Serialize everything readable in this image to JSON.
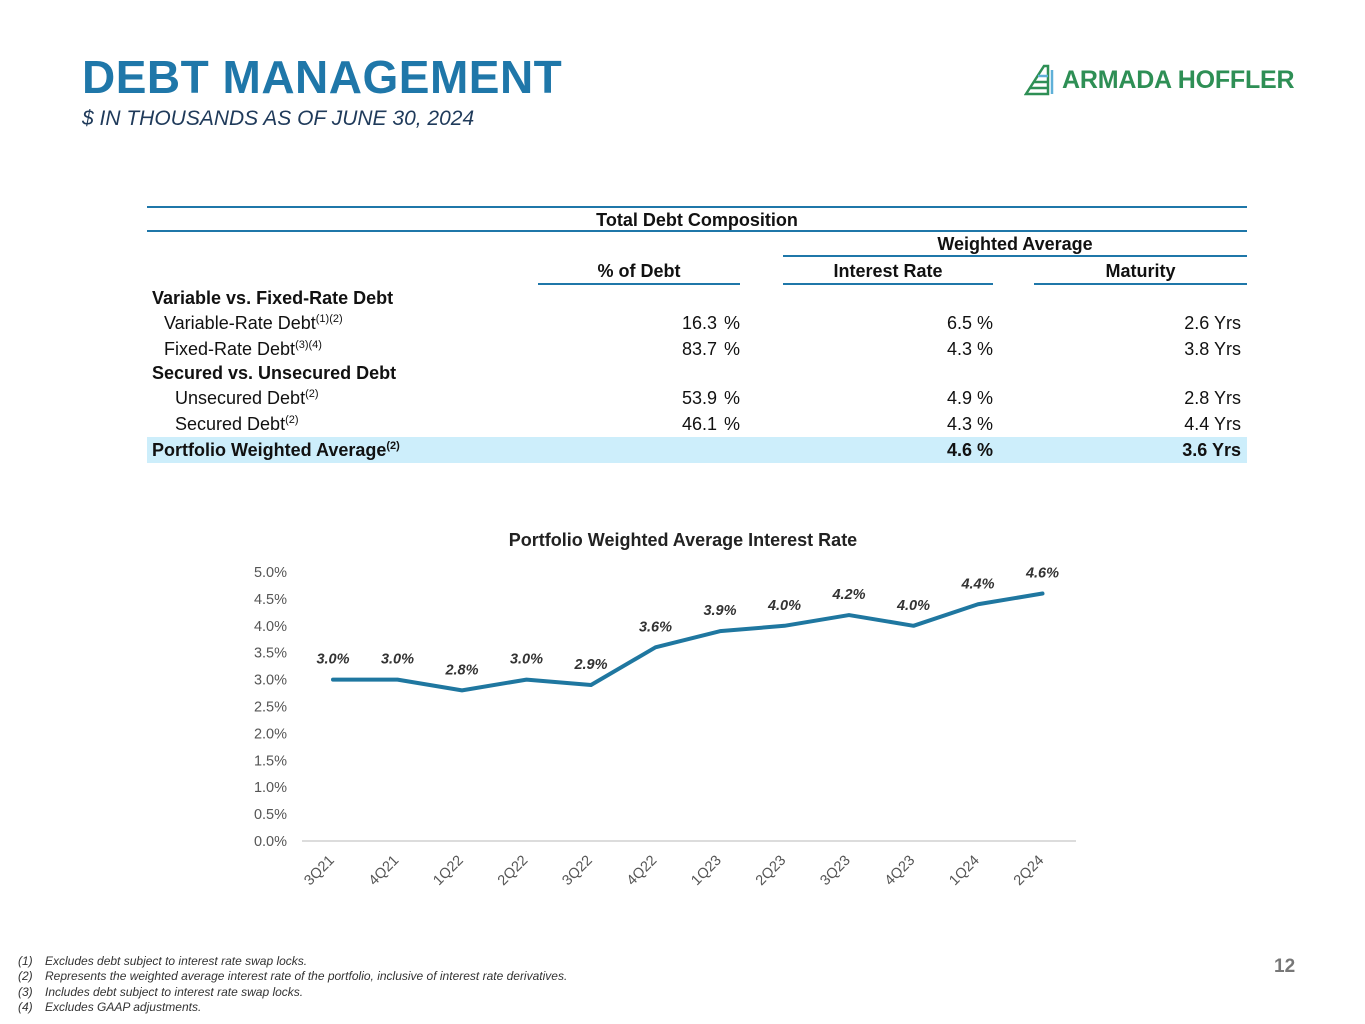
{
  "header": {
    "title": "DEBT MANAGEMENT",
    "subtitle": "$ IN THOUSANDS AS OF JUNE 30, 2024",
    "logo_text": "ARMADA HOFFLER"
  },
  "table": {
    "title": "Total Debt Composition",
    "group_header": "Weighted Average",
    "columns": [
      "% of Debt",
      "Interest Rate",
      "Maturity"
    ],
    "sections": [
      {
        "label": "Variable vs. Fixed-Rate Debt",
        "rows": [
          {
            "label": "Variable-Rate Debt",
            "sup": "(1)(2)",
            "pct": "16.3",
            "pct_unit": "%",
            "rate": "6.5",
            "rate_unit": "%",
            "maturity": "2.6 Yrs"
          },
          {
            "label": "Fixed-Rate Debt",
            "sup": "(3)(4)",
            "pct": "83.7",
            "pct_unit": "%",
            "rate": "4.3",
            "rate_unit": "%",
            "maturity": "3.8 Yrs"
          }
        ]
      },
      {
        "label": "Secured vs. Unsecured Debt",
        "rows": [
          {
            "label": "Unsecured Debt",
            "sup": "(2)",
            "pct": "53.9",
            "pct_unit": "%",
            "rate": "4.9",
            "rate_unit": "%",
            "maturity": "2.8 Yrs"
          },
          {
            "label": "Secured Debt",
            "sup": "(2)",
            "pct": "46.1",
            "pct_unit": "%",
            "rate": "4.3",
            "rate_unit": "%",
            "maturity": "4.4 Yrs"
          }
        ]
      }
    ],
    "total": {
      "label": "Portfolio Weighted Average",
      "sup": "(2)",
      "rate": "4.6",
      "rate_unit": "%",
      "maturity": "3.6 Yrs"
    }
  },
  "chart_data": {
    "type": "line",
    "title": "Portfolio Weighted Average Interest Rate",
    "categories": [
      "3Q21",
      "4Q21",
      "1Q22",
      "2Q22",
      "3Q22",
      "4Q22",
      "1Q23",
      "2Q23",
      "3Q23",
      "4Q23",
      "1Q24",
      "2Q24"
    ],
    "values": [
      3.0,
      3.0,
      2.8,
      3.0,
      2.9,
      3.6,
      3.9,
      4.0,
      4.2,
      4.0,
      4.4,
      4.6
    ],
    "data_labels": [
      "3.0%",
      "3.0%",
      "2.8%",
      "3.0%",
      "2.9%",
      "3.6%",
      "3.9%",
      "4.0%",
      "4.2%",
      "4.0%",
      "4.4%",
      "4.6%"
    ],
    "yticks": [
      "0.0%",
      "0.5%",
      "1.0%",
      "1.5%",
      "2.0%",
      "2.5%",
      "3.0%",
      "3.5%",
      "4.0%",
      "4.5%",
      "5.0%"
    ],
    "ylim": [
      0,
      5
    ],
    "line_color": "#1f77a0",
    "grid": false
  },
  "footnotes": [
    {
      "num": "(1)",
      "text": "Excludes debt subject to interest rate swap locks."
    },
    {
      "num": "(2)",
      "text": "Represents the weighted average interest rate of the portfolio, inclusive of interest rate derivatives."
    },
    {
      "num": "(3)",
      "text": "Includes debt subject to interest rate swap locks."
    },
    {
      "num": "(4)",
      "text": "Excludes GAAP adjustments."
    }
  ],
  "page_number": "12",
  "colors": {
    "title": "#1f77a9",
    "highlight": "#cdeefb",
    "logo": "#2e8f55"
  }
}
